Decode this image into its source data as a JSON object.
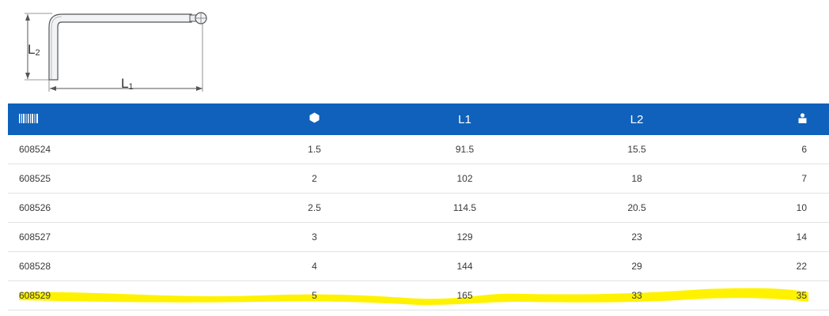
{
  "diagram": {
    "label_l2": "L",
    "label_l2_sub": "2",
    "label_l1": "L",
    "label_l1_sub": "1"
  },
  "table": {
    "header": {
      "code_icon": "barcode-icon",
      "hex_icon": "hexagon-icon",
      "l1": "L1",
      "l2": "L2",
      "qty_icon": "weight-icon"
    },
    "rows": [
      {
        "code": "608524",
        "hex": "1.5",
        "l1": "91.5",
        "l2": "15.5",
        "qty": "6"
      },
      {
        "code": "608525",
        "hex": "2",
        "l1": "102",
        "l2": "18",
        "qty": "7"
      },
      {
        "code": "608526",
        "hex": "2.5",
        "l1": "114.5",
        "l2": "20.5",
        "qty": "10"
      },
      {
        "code": "608527",
        "hex": "3",
        "l1": "129",
        "l2": "23",
        "qty": "14"
      },
      {
        "code": "608528",
        "hex": "4",
        "l1": "144",
        "l2": "29",
        "qty": "22"
      },
      {
        "code": "608529",
        "hex": "5",
        "l1": "165",
        "l2": "33",
        "qty": "35"
      }
    ],
    "colors": {
      "header_bg": "#0f61bb",
      "highlight": "#fff200"
    }
  }
}
